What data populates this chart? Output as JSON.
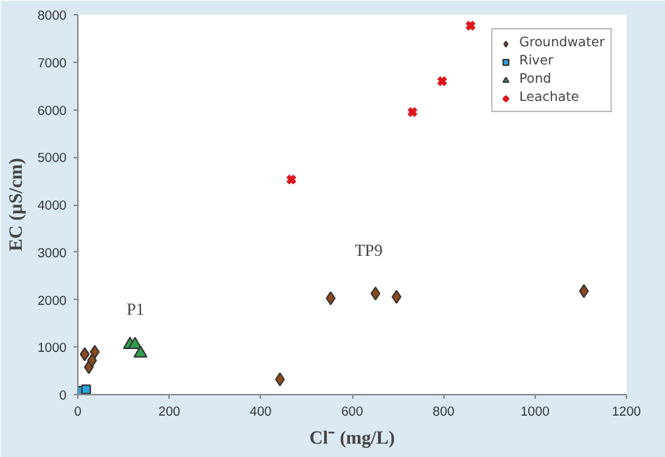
{
  "chart_data": {
    "type": "scatter",
    "xlabel": "Cl⁻ (mg/L)",
    "ylabel": "EC (µS/cm)",
    "xlim": [
      0,
      1200
    ],
    "xticks": [
      0,
      200,
      400,
      600,
      800,
      1000,
      1200
    ],
    "ylim": [
      0,
      8000
    ],
    "yticks": [
      0,
      1000,
      2000,
      3000,
      4000,
      5000,
      6000,
      7000,
      8000
    ],
    "grid": false,
    "legend": "top right",
    "series": [
      {
        "name": "Groundwater",
        "color": "#8b4a1c",
        "marker": "diamond",
        "x": [
          15,
          37,
          24,
          31,
          442,
          553,
          651,
          697,
          1107
        ],
        "values": [
          850,
          900,
          580,
          720,
          320,
          2030,
          2130,
          2060,
          2180
        ]
      },
      {
        "name": "River",
        "color": "#29a3dd",
        "marker": "square",
        "x": [
          3,
          18
        ],
        "values": [
          80,
          110
        ]
      },
      {
        "name": "Pond",
        "color": "#2e9e4f",
        "marker": "triangle",
        "x": [
          114,
          125,
          137
        ],
        "values": [
          1050,
          1050,
          870
        ]
      },
      {
        "name": "Leachate",
        "color": "#e0141c",
        "marker": "cross",
        "x": [
          467,
          732,
          797,
          859
        ],
        "values": [
          4530,
          5950,
          6600,
          7770
        ]
      }
    ],
    "annotations": [
      "P1",
      "TP9"
    ]
  }
}
